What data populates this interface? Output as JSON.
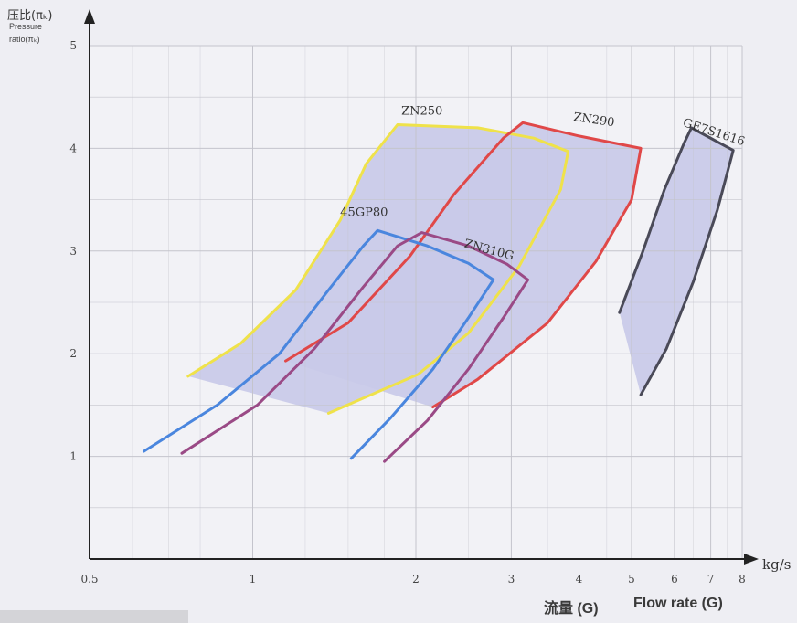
{
  "y_axis_label_cn": "压比(πₖ)",
  "y_axis_label_en_1": "Pressure",
  "y_axis_label_en_2": "ratio(πₖ)",
  "x_axis_unit": "kg/s",
  "x_axis_label_cn": "流量 (G)",
  "x_axis_label_en": "Flow rate (G)",
  "colors": {
    "ZN250": "#efe24a",
    "ZN290": "#e04848",
    "GE7S1616": "#4a4a58",
    "45GP80": "#4a86de",
    "ZN310G": "#9a4a86",
    "fill": "#c9cae8",
    "grid": "#c4c4cc"
  },
  "chart_data": {
    "type": "line",
    "x_scale": "log",
    "xlim": [
      0.5,
      8
    ],
    "ylim": [
      0,
      5
    ],
    "x_ticks": [
      {
        "value": 0.5,
        "label": "0.5"
      },
      {
        "value": 1,
        "label": "1"
      },
      {
        "value": 2,
        "label": "2"
      },
      {
        "value": 3,
        "label": "3"
      },
      {
        "value": 4,
        "label": "4"
      },
      {
        "value": 5,
        "label": "5"
      },
      {
        "value": 6,
        "label": "6"
      },
      {
        "value": 7,
        "label": "7"
      },
      {
        "value": 8,
        "label": "8"
      }
    ],
    "y_ticks": [
      {
        "value": 1,
        "label": "1"
      },
      {
        "value": 2,
        "label": "2"
      },
      {
        "value": 3,
        "label": "3"
      },
      {
        "value": 4,
        "label": "4"
      },
      {
        "value": 5,
        "label": "5"
      }
    ],
    "grid": true,
    "series": [
      {
        "name": "ZN250",
        "label_at": [
          1.88,
          4.33
        ],
        "label_rotate": 0,
        "points": [
          [
            0.76,
            1.78
          ],
          [
            0.95,
            2.1
          ],
          [
            1.2,
            2.62
          ],
          [
            1.45,
            3.3
          ],
          [
            1.62,
            3.85
          ],
          [
            1.85,
            4.23
          ],
          [
            2.6,
            4.2
          ],
          [
            3.3,
            4.1
          ],
          [
            3.82,
            3.97
          ],
          [
            3.7,
            3.6
          ],
          [
            3.1,
            2.85
          ],
          [
            2.5,
            2.2
          ],
          [
            2.02,
            1.8
          ],
          [
            1.38,
            1.42
          ]
        ],
        "fill": true
      },
      {
        "name": "ZN290",
        "label_at": [
          3.9,
          4.27
        ],
        "label_rotate": 8,
        "points": [
          [
            1.15,
            1.93
          ],
          [
            1.5,
            2.3
          ],
          [
            1.95,
            2.95
          ],
          [
            2.35,
            3.55
          ],
          [
            2.9,
            4.1
          ],
          [
            3.15,
            4.25
          ],
          [
            4.0,
            4.12
          ],
          [
            5.2,
            4.0
          ],
          [
            5.0,
            3.5
          ],
          [
            4.3,
            2.9
          ],
          [
            3.5,
            2.3
          ],
          [
            2.6,
            1.75
          ],
          [
            2.15,
            1.48
          ]
        ],
        "fill": true
      },
      {
        "name": "GE7S1616",
        "label_at": [
          6.2,
          4.22
        ],
        "label_rotate": 18,
        "points": [
          [
            4.75,
            2.4
          ],
          [
            5.25,
            3.0
          ],
          [
            5.75,
            3.6
          ],
          [
            6.25,
            4.05
          ],
          [
            6.45,
            4.2
          ],
          [
            7.7,
            3.98
          ],
          [
            7.2,
            3.4
          ],
          [
            6.5,
            2.7
          ],
          [
            5.8,
            2.05
          ],
          [
            5.2,
            1.6
          ]
        ],
        "fill": true
      },
      {
        "name": "45GP80",
        "label_at": [
          1.45,
          3.34
        ],
        "label_rotate": 0,
        "points": [
          [
            0.63,
            1.05
          ],
          [
            0.86,
            1.5
          ],
          [
            1.12,
            2.0
          ],
          [
            1.38,
            2.62
          ],
          [
            1.6,
            3.05
          ],
          [
            1.7,
            3.2
          ],
          [
            2.1,
            3.05
          ],
          [
            2.5,
            2.88
          ],
          [
            2.78,
            2.72
          ],
          [
            2.5,
            2.35
          ],
          [
            2.15,
            1.85
          ],
          [
            1.8,
            1.38
          ],
          [
            1.52,
            0.98
          ]
        ]
      },
      {
        "name": "ZN310G",
        "label_at": [
          2.45,
          3.04
        ],
        "label_rotate": 15,
        "points": [
          [
            0.74,
            1.03
          ],
          [
            1.02,
            1.5
          ],
          [
            1.3,
            2.05
          ],
          [
            1.6,
            2.65
          ],
          [
            1.85,
            3.05
          ],
          [
            2.05,
            3.18
          ],
          [
            2.5,
            3.05
          ],
          [
            2.95,
            2.87
          ],
          [
            3.22,
            2.72
          ],
          [
            2.9,
            2.35
          ],
          [
            2.5,
            1.85
          ],
          [
            2.1,
            1.35
          ],
          [
            1.75,
            0.95
          ]
        ]
      }
    ]
  }
}
